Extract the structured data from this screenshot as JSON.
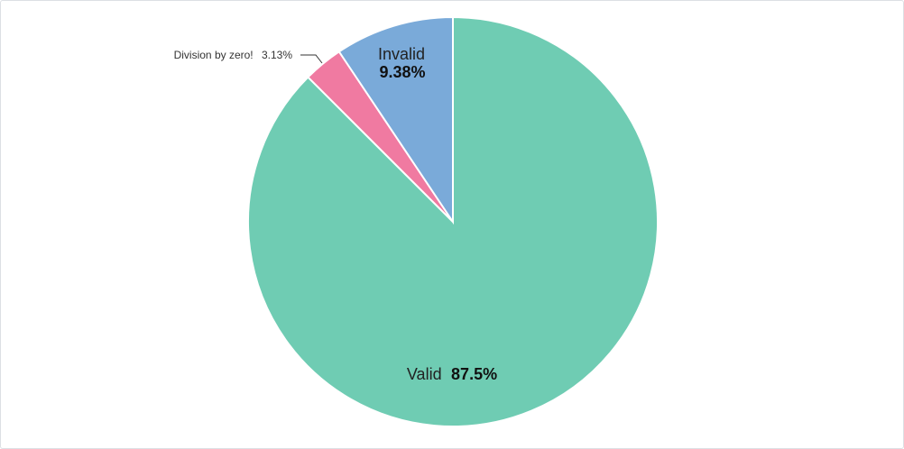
{
  "chart_data": {
    "type": "pie",
    "title": "",
    "start_angle_deg": 0,
    "direction": "clockwise",
    "slices": [
      {
        "key": "valid",
        "name": "Valid",
        "value": 87.5,
        "value_label": "87.5%",
        "color": "#6fccb3"
      },
      {
        "key": "division",
        "name": "Division by zero!",
        "value": 3.13,
        "value_label": "3.13%",
        "color": "#f07aa1"
      },
      {
        "key": "invalid",
        "name": "Invalid",
        "value": 9.38,
        "value_label": "9.38%",
        "color": "#7aaad9"
      }
    ]
  }
}
